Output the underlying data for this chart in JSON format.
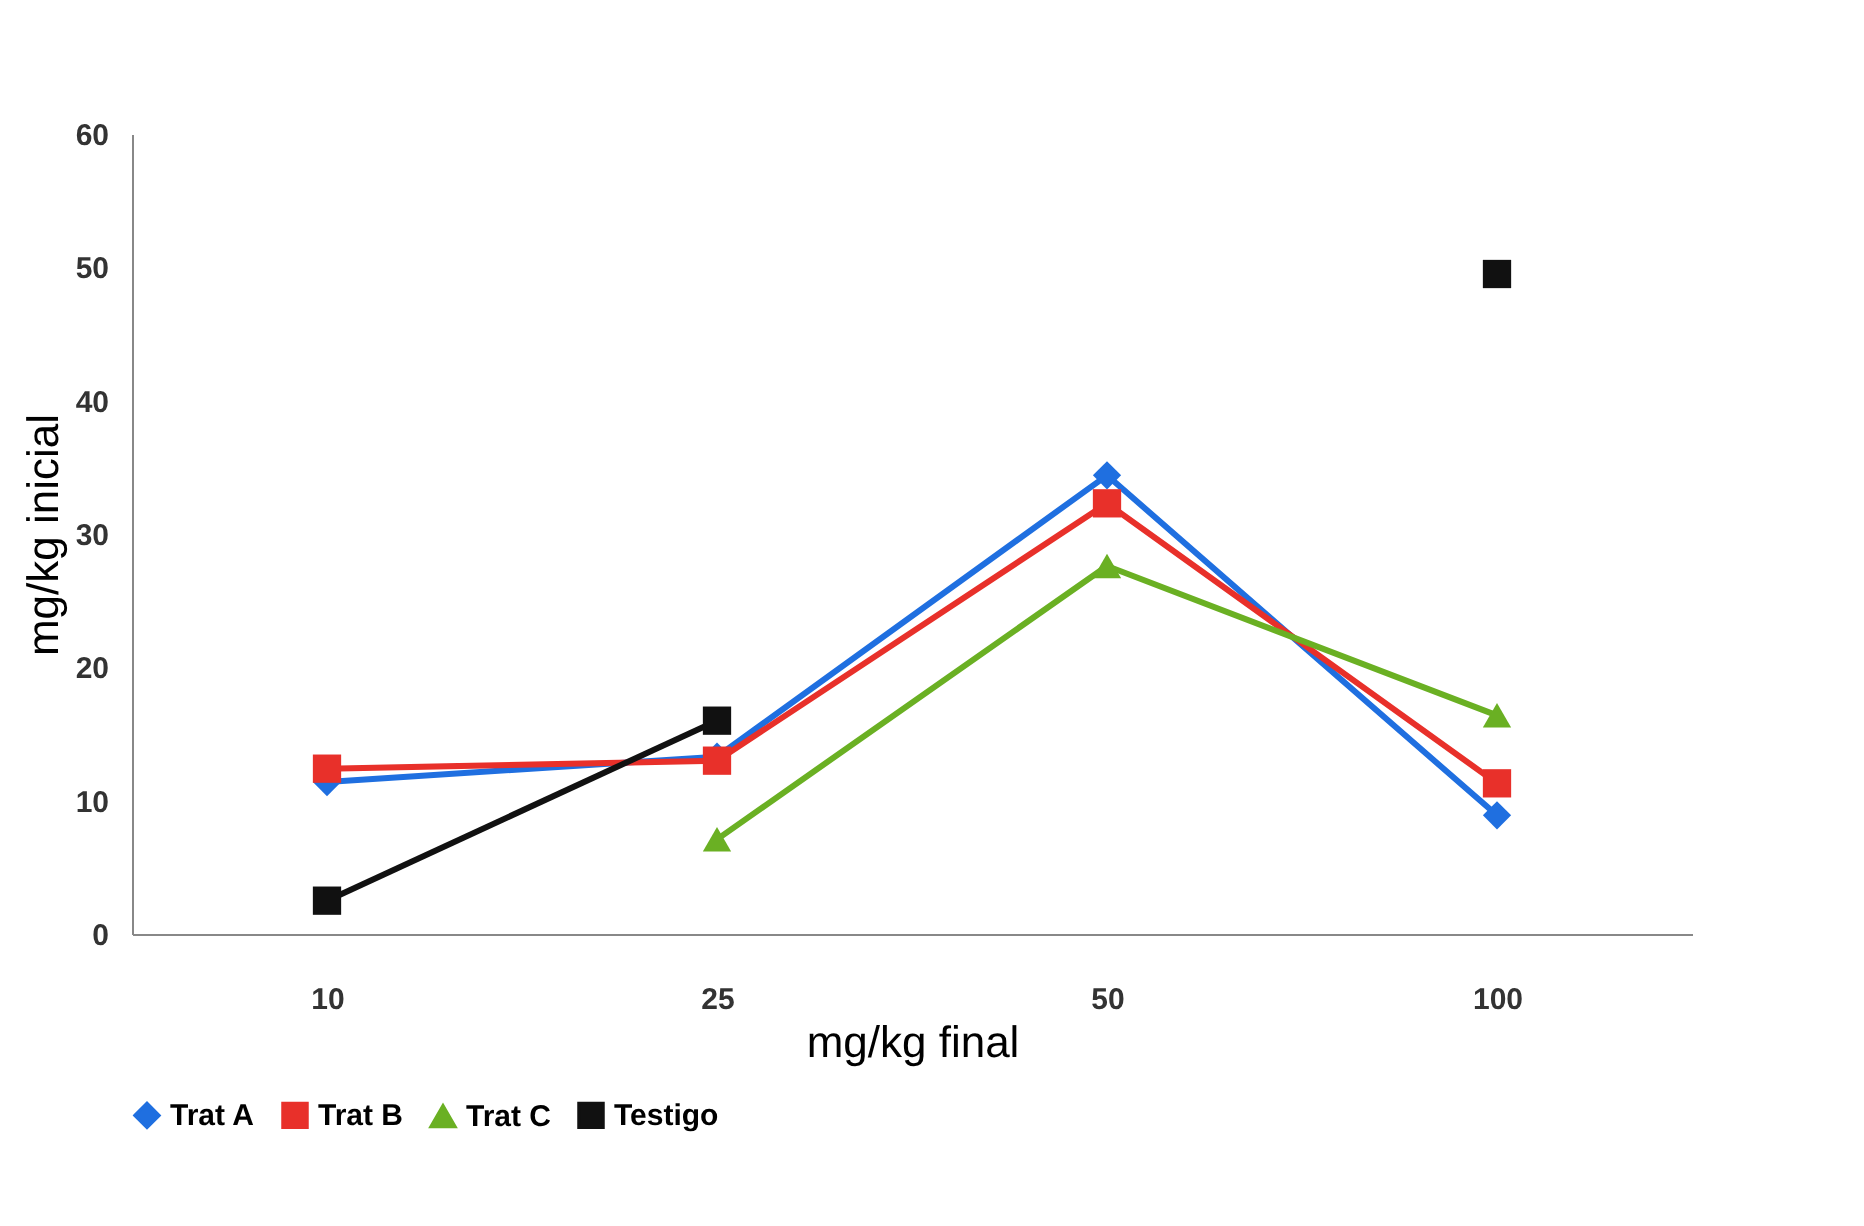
{
  "chart_data": {
    "type": "line",
    "xlabel": "mg/kg final",
    "ylabel": "mg/kg inicial",
    "categories": [
      "10",
      "25",
      "50",
      "100"
    ],
    "series": [
      {
        "name": "Trat A",
        "color": "#1f6fe0",
        "marker": "diamond",
        "values": [
          11.4,
          13.3,
          34.4,
          8.9
        ]
      },
      {
        "name": "Trat B",
        "color": "#e8302a",
        "marker": "square",
        "values": [
          12.4,
          13.0,
          32.3,
          11.3
        ]
      },
      {
        "name": "Trat C",
        "color": "#6ab023",
        "marker": "triangle",
        "values": [
          null,
          7.1,
          27.6,
          16.4
        ]
      },
      {
        "name": "Testigo",
        "color": "#111111",
        "marker": "square",
        "values": [
          2.5,
          16.0,
          null,
          49.5
        ]
      }
    ],
    "ylim": [
      0,
      60
    ],
    "yticks": [
      0,
      10,
      20,
      30,
      40,
      50,
      60
    ],
    "grid": false,
    "legend": "bottom",
    "line_style": "solid"
  }
}
